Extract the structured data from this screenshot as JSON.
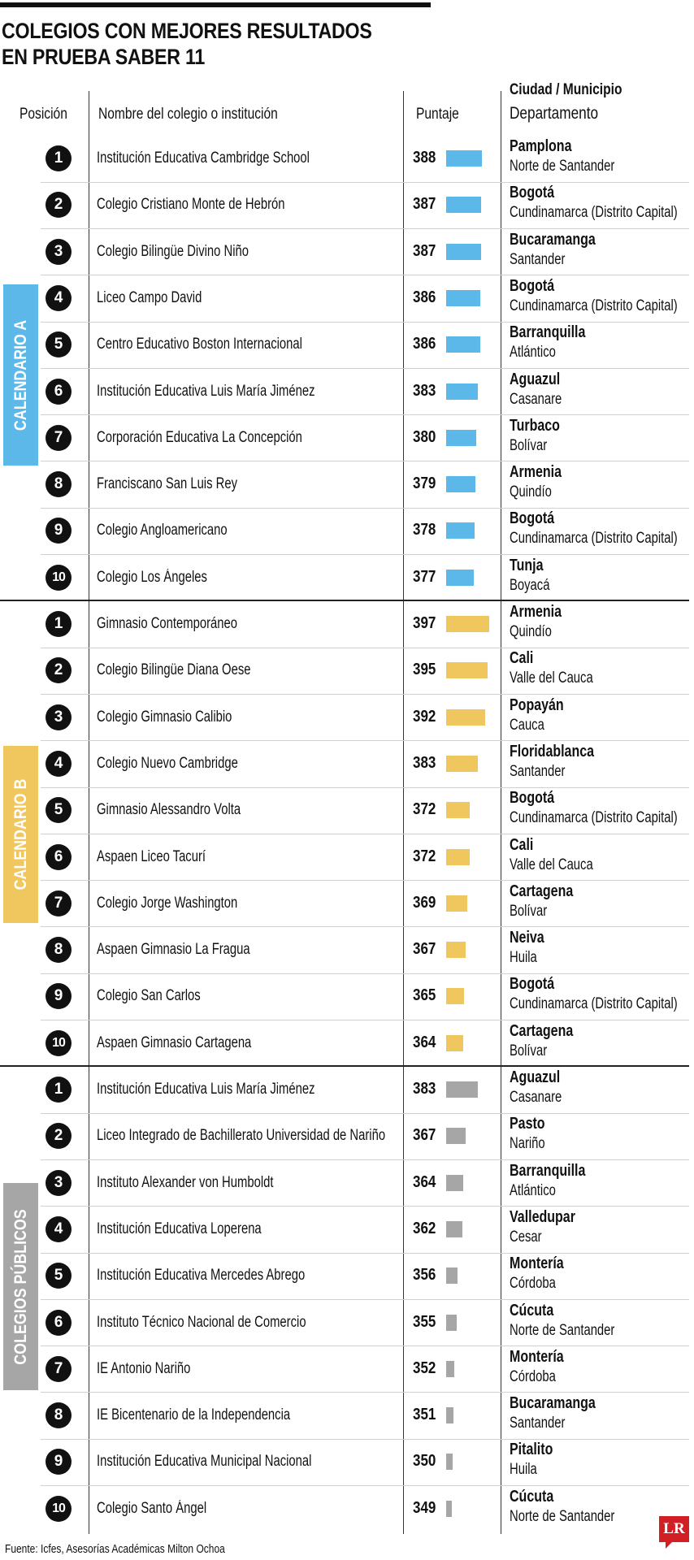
{
  "title": [
    "COLEGIOS CON MEJORES RESULTADOS",
    "EN PRUEBA SABER 11"
  ],
  "headers": {
    "position": "Posición",
    "name": "Nombre del colegio o institución",
    "score": "Puntaje",
    "city": "Ciudad / Municipio",
    "department": "Departamento"
  },
  "footer": "Fuente: Icfes, Asesorías Académicas Milton Ochoa",
  "logo": "LR",
  "chart_data": {
    "type": "bar",
    "groups": [
      {
        "label": "CALENDARIO A",
        "color": "#5bb8e8",
        "rows": [
          {
            "pos": "1",
            "name": "Institución Educativa Cambridge School",
            "score": 388,
            "city": "Pamplona",
            "dept": "Norte de Santander"
          },
          {
            "pos": "2",
            "name": "Colegio Cristiano Monte de Hebrón",
            "score": 387,
            "city": "Bogotá",
            "dept": "Cundinamarca (Distrito Capital)"
          },
          {
            "pos": "3",
            "name": "Colegio Bilingüe Divino Niño",
            "score": 387,
            "city": "Bucaramanga",
            "dept": "Santander"
          },
          {
            "pos": "4",
            "name": "Liceo Campo David",
            "score": 386,
            "city": "Bogotá",
            "dept": "Cundinamarca (Distrito Capital)"
          },
          {
            "pos": "5",
            "name": "Centro Educativo Boston Internacional",
            "score": 386,
            "city": "Barranquilla",
            "dept": "Atlántico"
          },
          {
            "pos": "6",
            "name": "Institución Educativa Luis María Jiménez",
            "score": 383,
            "city": "Aguazul",
            "dept": "Casanare"
          },
          {
            "pos": "7",
            "name": "Corporación Educativa La Concepción",
            "score": 380,
            "city": "Turbaco",
            "dept": "Bolívar"
          },
          {
            "pos": "8",
            "name": "Franciscano San Luis Rey",
            "score": 379,
            "city": "Armenia",
            "dept": "Quindío"
          },
          {
            "pos": "9",
            "name": "Colegio Angloamericano",
            "score": 378,
            "city": "Bogotá",
            "dept": "Cundinamarca (Distrito Capital)"
          },
          {
            "pos": "10",
            "name": "Colegio Los Ángeles",
            "score": 377,
            "city": "Tunja",
            "dept": "Boyacá"
          }
        ]
      },
      {
        "label": "CALENDARIO B",
        "color": "#f0c75e",
        "rows": [
          {
            "pos": "1",
            "name": "Gimnasio Contemporáneo",
            "score": 397,
            "city": "Armenia",
            "dept": "Quindío"
          },
          {
            "pos": "2",
            "name": "Colegio Bilingüe Diana Oese",
            "score": 395,
            "city": "Cali",
            "dept": "Valle del Cauca"
          },
          {
            "pos": "3",
            "name": "Colegio Gimnasio Calibio",
            "score": 392,
            "city": "Popayán",
            "dept": "Cauca"
          },
          {
            "pos": "4",
            "name": "Colegio Nuevo Cambridge",
            "score": 383,
            "city": "Floridablanca",
            "dept": "Santander"
          },
          {
            "pos": "5",
            "name": "Gimnasio Alessandro Volta",
            "score": 372,
            "city": "Bogotá",
            "dept": "Cundinamarca (Distrito Capital)"
          },
          {
            "pos": "6",
            "name": "Aspaen Liceo Tacurí",
            "score": 372,
            "city": "Cali",
            "dept": "Valle del Cauca"
          },
          {
            "pos": "7",
            "name": "Colegio Jorge Washington",
            "score": 369,
            "city": "Cartagena",
            "dept": "Bolívar"
          },
          {
            "pos": "8",
            "name": "Aspaen Gimnasio La Fragua",
            "score": 367,
            "city": "Neiva",
            "dept": "Huila"
          },
          {
            "pos": "9",
            "name": "Colegio San Carlos",
            "score": 365,
            "city": "Bogotá",
            "dept": "Cundinamarca (Distrito Capital)"
          },
          {
            "pos": "10",
            "name": "Aspaen Gimnasio Cartagena",
            "score": 364,
            "city": "Cartagena",
            "dept": "Bolívar"
          }
        ]
      },
      {
        "label": "COLEGIOS PÚBLICOS",
        "color": "#a6a6a6",
        "rows": [
          {
            "pos": "1",
            "name": "Institución Educativa Luis María Jiménez",
            "score": 383,
            "city": "Aguazul",
            "dept": "Casanare"
          },
          {
            "pos": "2",
            "name": "Liceo Integrado de Bachillerato Universidad de Nariño",
            "score": 367,
            "city": "Pasto",
            "dept": "Nariño"
          },
          {
            "pos": "3",
            "name": "Instituto Alexander von Humboldt",
            "score": 364,
            "city": "Barranquilla",
            "dept": "Atlántico"
          },
          {
            "pos": "4",
            "name": "Institución Educativa Loperena",
            "score": 362,
            "city": "Valledupar",
            "dept": "Cesar"
          },
          {
            "pos": "5",
            "name": "Institución Educativa Mercedes Abrego",
            "score": 356,
            "city": "Montería",
            "dept": "Córdoba"
          },
          {
            "pos": "6",
            "name": "Instituto Técnico Nacional de Comercio",
            "score": 355,
            "city": "Cúcuta",
            "dept": "Norte de Santander"
          },
          {
            "pos": "7",
            "name": "IE Antonio Nariño",
            "score": 352,
            "city": "Montería",
            "dept": "Córdoba"
          },
          {
            "pos": "8",
            "name": "IE Bicentenario de la Independencia",
            "score": 351,
            "city": "Bucaramanga",
            "dept": "Santander"
          },
          {
            "pos": "9",
            "name": "Institución Educativa Municipal Nacional",
            "score": 350,
            "city": "Pitalito",
            "dept": "Huila"
          },
          {
            "pos": "10",
            "name": "Colegio Santo Ángel",
            "score": 349,
            "city": "Cúcuta",
            "dept": "Norte de Santander"
          }
        ]
      }
    ]
  }
}
